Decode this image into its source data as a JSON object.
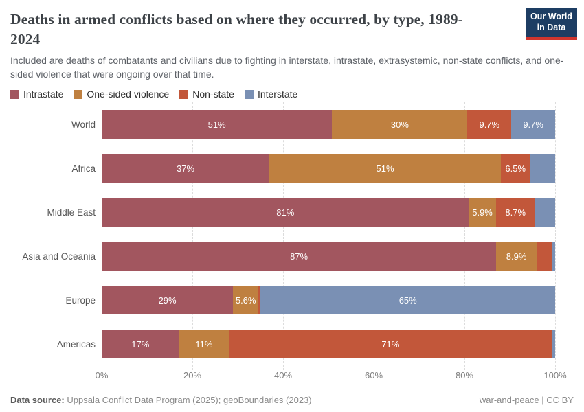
{
  "header": {
    "title": "Deaths in armed conflicts based on where they occurred, by type, 1989-2024",
    "subtitle": "Included are deaths of combatants and civilians due to fighting in interstate, intrastate, extrasystemic, non-state conflicts, and one-sided violence that were ongoing over that time.",
    "logo": {
      "line1": "Our World",
      "line2": "in Data",
      "bg_color": "#1d3d63",
      "accent_color": "#cf352e"
    }
  },
  "chart_data": {
    "type": "bar",
    "orientation": "horizontal-stacked",
    "unit": "%",
    "xlim": [
      0,
      100
    ],
    "x_ticks": [
      "0%",
      "20%",
      "40%",
      "60%",
      "80%",
      "100%"
    ],
    "grid": "dashed-vertical",
    "legend_position": "top",
    "categories": [
      "World",
      "Africa",
      "Middle East",
      "Asia and Oceania",
      "Europe",
      "Americas"
    ],
    "series": [
      {
        "name": "Intrastate",
        "color": "#A2565F",
        "values": [
          51,
          37,
          81,
          87,
          29,
          17
        ],
        "labels": [
          "51%",
          "37%",
          "81%",
          "87%",
          "29%",
          "17%"
        ]
      },
      {
        "name": "One-sided violence",
        "color": "#BF8040",
        "values": [
          30,
          51,
          5.9,
          8.9,
          5.6,
          11
        ],
        "labels": [
          "30%",
          "51%",
          "5.9%",
          "8.9%",
          "5.6%",
          "11%"
        ]
      },
      {
        "name": "Non-state",
        "color": "#C2573A",
        "values": [
          9.7,
          6.5,
          8.7,
          3.3,
          0.5,
          71
        ],
        "labels": [
          "9.7%",
          "6.5%",
          "8.7%",
          "",
          "",
          "71%"
        ]
      },
      {
        "name": "Interstate",
        "color": "#7A90B4",
        "values": [
          9.7,
          5.5,
          4.4,
          0.8,
          65,
          0.7
        ],
        "labels": [
          "9.7%",
          "",
          "",
          "",
          "65%",
          ""
        ]
      }
    ]
  },
  "footer": {
    "source_label": "Data source:",
    "source_text": "Uppsala Conflict Data Program (2025); geoBoundaries (2023)",
    "credit_primary": "war-and-peace",
    "credit_separator": "|",
    "credit_license": "CC BY"
  }
}
